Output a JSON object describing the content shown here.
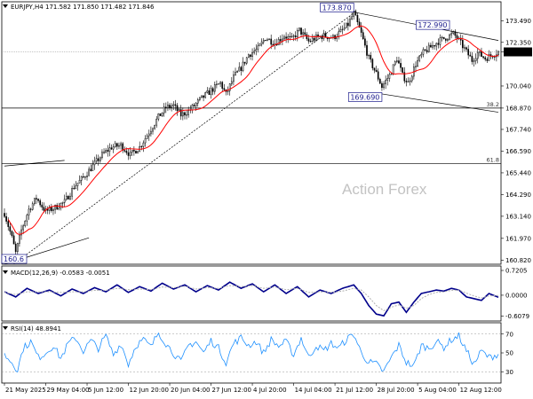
{
  "header": {
    "main": "EURJPY,H4  171.582 171.850 171.482 171.846",
    "macd": "MACD(12,26,9) -0.0583 -0.0051",
    "rsi": "RSI(14) 48.8941"
  },
  "watermark": "Action Forex",
  "colors": {
    "candle": "#000000",
    "ma": "#ff0000",
    "macd": "#00008b",
    "signal": "#b0b0b0",
    "rsi": "#1e90ff",
    "callout_border": "#1a1a8c",
    "trend": "#000000"
  },
  "chart_data": [
    {
      "type": "candlestick",
      "ylim": [
        160.6,
        174.5
      ],
      "y_ticks": [
        "173.490",
        "172.350",
        "171.846",
        "170.040",
        "168.870",
        "167.740",
        "166.590",
        "165.440",
        "164.290",
        "163.140",
        "161.970",
        "160.820"
      ],
      "y_tick_values": [
        173.49,
        172.35,
        171.846,
        170.04,
        168.87,
        167.74,
        166.59,
        165.44,
        164.29,
        163.14,
        161.97,
        160.82
      ],
      "current_price": "171.846",
      "current_price_value": 171.846,
      "x_ticks": [
        "21 May 2025",
        "29 May 04:00",
        "5 Jun 12:00",
        "12 Jun 20:00",
        "20 Jun 04:00",
        "27 Jun 12:00",
        "4 Jul 20:00",
        "14 Jul 04:00",
        "21 Jul 12:00",
        "28 Jul 20:00",
        "5 Aug 04:00",
        "12 Aug 12:00"
      ],
      "x_tick_index": [
        0,
        22,
        44,
        66,
        88,
        110,
        132,
        154,
        176,
        198,
        220,
        242
      ],
      "n_bars": 264,
      "price_path": [
        [
          0,
          163.3
        ],
        [
          4,
          162.0
        ],
        [
          6,
          161.2
        ],
        [
          9,
          162.4
        ],
        [
          13,
          163.5
        ],
        [
          17,
          164.1
        ],
        [
          22,
          163.4
        ],
        [
          27,
          163.6
        ],
        [
          32,
          163.9
        ],
        [
          37,
          164.7
        ],
        [
          42,
          165.2
        ],
        [
          47,
          165.8
        ],
        [
          52,
          166.4
        ],
        [
          57,
          166.8
        ],
        [
          62,
          166.9
        ],
        [
          67,
          166.4
        ],
        [
          72,
          166.8
        ],
        [
          77,
          167.6
        ],
        [
          82,
          168.4
        ],
        [
          86,
          168.9
        ],
        [
          90,
          169.0
        ],
        [
          94,
          168.5
        ],
        [
          98,
          168.7
        ],
        [
          104,
          169.3
        ],
        [
          110,
          169.8
        ],
        [
          115,
          170.2
        ],
        [
          118,
          169.6
        ],
        [
          122,
          170.5
        ],
        [
          126,
          171.0
        ],
        [
          130,
          171.7
        ],
        [
          135,
          172.0
        ],
        [
          139,
          172.6
        ],
        [
          144,
          172.3
        ],
        [
          149,
          172.7
        ],
        [
          153,
          172.5
        ],
        [
          157,
          173.0
        ],
        [
          162,
          172.4
        ],
        [
          166,
          172.6
        ],
        [
          170,
          172.7
        ],
        [
          175,
          172.6
        ],
        [
          179,
          172.9
        ],
        [
          183,
          173.3
        ],
        [
          186,
          173.9
        ],
        [
          190,
          172.8
        ],
        [
          194,
          171.5
        ],
        [
          198,
          170.7
        ],
        [
          201,
          170.0
        ],
        [
          205,
          170.6
        ],
        [
          209,
          171.5
        ],
        [
          212,
          170.6
        ],
        [
          215,
          170.2
        ],
        [
          219,
          171.2
        ],
        [
          223,
          171.8
        ],
        [
          227,
          172.1
        ],
        [
          231,
          172.4
        ],
        [
          235,
          172.6
        ],
        [
          239,
          172.8
        ],
        [
          241,
          172.6
        ],
        [
          245,
          172.0
        ],
        [
          249,
          171.4
        ],
        [
          252,
          171.8
        ],
        [
          256,
          171.5
        ],
        [
          260,
          171.7
        ],
        [
          263,
          171.85
        ]
      ],
      "ma_label": "",
      "annotations": [
        {
          "label": "173.870",
          "index": 186,
          "price": 173.87
        },
        {
          "label": "172.990",
          "index": 237,
          "price": 172.99
        },
        {
          "label": "169.690",
          "index": 201,
          "price": 169.69
        },
        {
          "label": "160.6",
          "index": 5,
          "price": 160.6
        }
      ],
      "fib_levels": [
        {
          "label": "38.2",
          "price": 168.87
        },
        {
          "label": "61.8",
          "price": 165.92
        }
      ],
      "trendlines": [
        {
          "style": "solid",
          "from": [
            186,
            173.95
          ],
          "to": [
            263,
            172.45
          ]
        },
        {
          "style": "solid",
          "from": [
            201,
            169.62
          ],
          "to": [
            263,
            168.65
          ]
        },
        {
          "style": "dashed",
          "from": [
            5,
            160.62
          ],
          "to": [
            186,
            173.9
          ]
        },
        {
          "style": "solid",
          "from": [
            0,
            165.8
          ],
          "to": [
            32,
            166.1
          ]
        },
        {
          "style": "solid",
          "from": [
            0,
            160.6
          ],
          "to": [
            45,
            162.0
          ]
        }
      ]
    },
    {
      "type": "line",
      "name": "MACD",
      "ylim": [
        -0.75,
        0.85
      ],
      "y_ticks": [
        "0.7205",
        "0.0000",
        "-0.6079"
      ],
      "y_tick_values": [
        0.7205,
        0.0,
        -0.6079
      ],
      "macd_path": [
        [
          0,
          0.1
        ],
        [
          6,
          -0.05
        ],
        [
          12,
          0.2
        ],
        [
          18,
          0.05
        ],
        [
          24,
          0.15
        ],
        [
          30,
          -0.02
        ],
        [
          36,
          0.18
        ],
        [
          42,
          0.05
        ],
        [
          48,
          0.22
        ],
        [
          54,
          0.1
        ],
        [
          60,
          0.3
        ],
        [
          66,
          0.08
        ],
        [
          72,
          0.25
        ],
        [
          78,
          0.12
        ],
        [
          84,
          0.35
        ],
        [
          90,
          0.18
        ],
        [
          96,
          0.3
        ],
        [
          102,
          0.1
        ],
        [
          108,
          0.28
        ],
        [
          114,
          0.15
        ],
        [
          120,
          0.38
        ],
        [
          126,
          0.2
        ],
        [
          132,
          0.33
        ],
        [
          138,
          0.1
        ],
        [
          144,
          0.3
        ],
        [
          150,
          0.05
        ],
        [
          156,
          0.25
        ],
        [
          162,
          -0.05
        ],
        [
          168,
          0.15
        ],
        [
          174,
          0.05
        ],
        [
          180,
          0.2
        ],
        [
          186,
          0.3
        ],
        [
          190,
          0.05
        ],
        [
          194,
          -0.3
        ],
        [
          198,
          -0.55
        ],
        [
          202,
          -0.6
        ],
        [
          206,
          -0.25
        ],
        [
          210,
          -0.2
        ],
        [
          214,
          -0.5
        ],
        [
          218,
          -0.2
        ],
        [
          222,
          0.05
        ],
        [
          226,
          0.1
        ],
        [
          230,
          0.15
        ],
        [
          234,
          0.12
        ],
        [
          238,
          0.2
        ],
        [
          242,
          0.15
        ],
        [
          246,
          -0.05
        ],
        [
          250,
          -0.1
        ],
        [
          254,
          -0.15
        ],
        [
          258,
          0.05
        ],
        [
          263,
          -0.06
        ]
      ],
      "signal_path": [
        [
          0,
          0.08
        ],
        [
          6,
          0.02
        ],
        [
          12,
          0.1
        ],
        [
          18,
          0.1
        ],
        [
          24,
          0.1
        ],
        [
          30,
          0.08
        ],
        [
          36,
          0.1
        ],
        [
          42,
          0.1
        ],
        [
          48,
          0.14
        ],
        [
          54,
          0.14
        ],
        [
          60,
          0.2
        ],
        [
          66,
          0.16
        ],
        [
          72,
          0.18
        ],
        [
          78,
          0.16
        ],
        [
          84,
          0.24
        ],
        [
          90,
          0.22
        ],
        [
          96,
          0.26
        ],
        [
          102,
          0.18
        ],
        [
          108,
          0.22
        ],
        [
          114,
          0.2
        ],
        [
          120,
          0.28
        ],
        [
          126,
          0.25
        ],
        [
          132,
          0.28
        ],
        [
          138,
          0.2
        ],
        [
          144,
          0.24
        ],
        [
          150,
          0.16
        ],
        [
          156,
          0.2
        ],
        [
          162,
          0.08
        ],
        [
          168,
          0.1
        ],
        [
          174,
          0.08
        ],
        [
          180,
          0.12
        ],
        [
          186,
          0.2
        ],
        [
          190,
          0.15
        ],
        [
          194,
          -0.05
        ],
        [
          198,
          -0.3
        ],
        [
          202,
          -0.45
        ],
        [
          206,
          -0.35
        ],
        [
          210,
          -0.28
        ],
        [
          214,
          -0.38
        ],
        [
          218,
          -0.3
        ],
        [
          222,
          -0.1
        ],
        [
          226,
          0.02
        ],
        [
          230,
          0.08
        ],
        [
          234,
          0.1
        ],
        [
          238,
          0.14
        ],
        [
          242,
          0.15
        ],
        [
          246,
          0.06
        ],
        [
          250,
          -0.02
        ],
        [
          254,
          -0.08
        ],
        [
          258,
          -0.02
        ],
        [
          263,
          -0.01
        ]
      ]
    },
    {
      "type": "line",
      "name": "RSI",
      "ylim": [
        18,
        82
      ],
      "y_ticks": [
        "70",
        "50",
        "30"
      ],
      "y_tick_values": [
        70,
        50,
        30
      ],
      "rsi_path": [
        [
          0,
          48
        ],
        [
          4,
          40
        ],
        [
          7,
          32
        ],
        [
          10,
          55
        ],
        [
          14,
          62
        ],
        [
          18,
          45
        ],
        [
          22,
          50
        ],
        [
          26,
          58
        ],
        [
          30,
          44
        ],
        [
          34,
          60
        ],
        [
          38,
          66
        ],
        [
          42,
          52
        ],
        [
          46,
          63
        ],
        [
          50,
          55
        ],
        [
          54,
          68
        ],
        [
          58,
          48
        ],
        [
          62,
          60
        ],
        [
          66,
          38
        ],
        [
          70,
          58
        ],
        [
          74,
          64
        ],
        [
          78,
          56
        ],
        [
          82,
          72
        ],
        [
          86,
          60
        ],
        [
          90,
          50
        ],
        [
          94,
          40
        ],
        [
          98,
          58
        ],
        [
          102,
          62
        ],
        [
          106,
          50
        ],
        [
          110,
          63
        ],
        [
          114,
          55
        ],
        [
          118,
          40
        ],
        [
          122,
          60
        ],
        [
          126,
          66
        ],
        [
          130,
          58
        ],
        [
          134,
          62
        ],
        [
          138,
          50
        ],
        [
          142,
          64
        ],
        [
          146,
          57
        ],
        [
          150,
          62
        ],
        [
          154,
          48
        ],
        [
          158,
          66
        ],
        [
          162,
          45
        ],
        [
          166,
          58
        ],
        [
          170,
          52
        ],
        [
          174,
          60
        ],
        [
          178,
          55
        ],
        [
          182,
          64
        ],
        [
          186,
          70
        ],
        [
          190,
          50
        ],
        [
          194,
          40
        ],
        [
          198,
          38
        ],
        [
          202,
          30
        ],
        [
          206,
          45
        ],
        [
          210,
          58
        ],
        [
          214,
          40
        ],
        [
          218,
          36
        ],
        [
          222,
          58
        ],
        [
          226,
          55
        ],
        [
          230,
          62
        ],
        [
          234,
          56
        ],
        [
          238,
          64
        ],
        [
          242,
          68
        ],
        [
          246,
          52
        ],
        [
          250,
          38
        ],
        [
          254,
          52
        ],
        [
          258,
          45
        ],
        [
          263,
          48.9
        ]
      ]
    }
  ]
}
